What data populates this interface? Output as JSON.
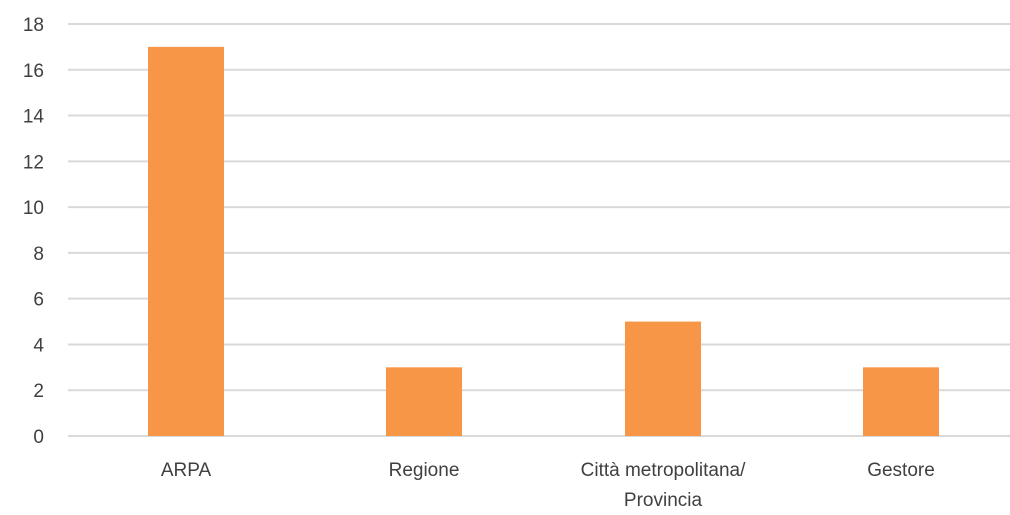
{
  "chart_data": {
    "type": "bar",
    "categories": [
      "ARPA",
      "Regione",
      "Città metropolitana/ Provincia",
      "Gestore"
    ],
    "category_lines": [
      [
        "ARPA"
      ],
      [
        "Regione"
      ],
      [
        "Città metropolitana/",
        "Provincia"
      ],
      [
        "Gestore"
      ]
    ],
    "values": [
      17,
      3,
      5,
      3
    ],
    "title": "",
    "xlabel": "",
    "ylabel": "",
    "ylim": [
      0,
      18
    ],
    "yticks": [
      0,
      2,
      4,
      6,
      8,
      10,
      12,
      14,
      16,
      18
    ],
    "grid": true,
    "legend": "none",
    "bar_color": "#f79646",
    "grid_color": "#d9d9d9",
    "text_color": "#404040"
  }
}
